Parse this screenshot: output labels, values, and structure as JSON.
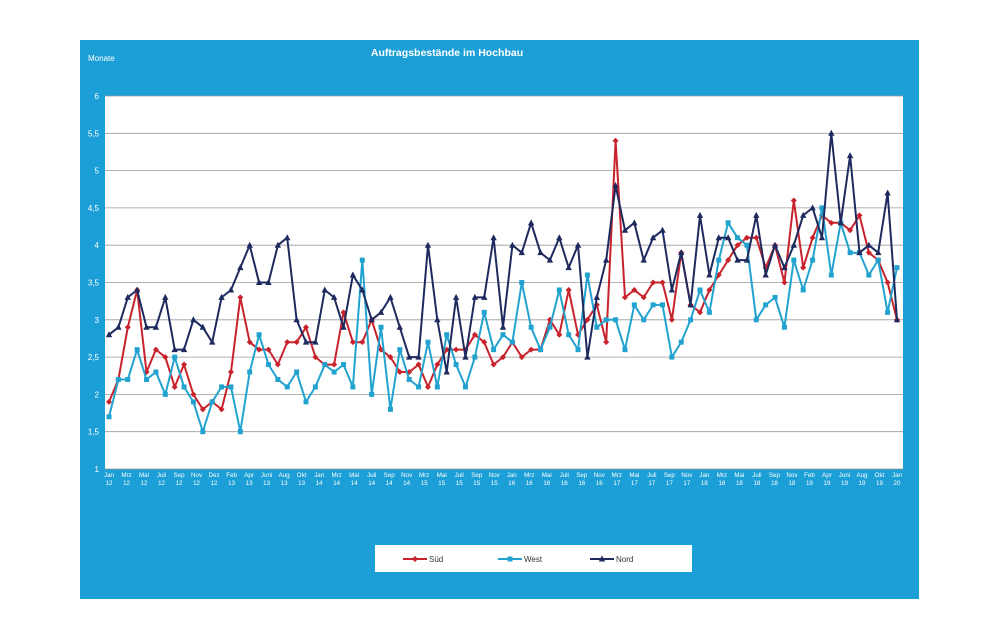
{
  "chart_data": {
    "type": "line",
    "title": "Auftragsbestände im Hochbau",
    "ylabel": "Monate",
    "xlabel": "",
    "ylim": [
      1,
      6
    ],
    "yticks": [
      "1",
      "1,5",
      "2",
      "2,5",
      "3",
      "3,5",
      "4",
      "4,5",
      "5",
      "5,5",
      "6"
    ],
    "grid": true,
    "legend_position": "bottom",
    "x_labels": [
      [
        "Jan",
        "12"
      ],
      [
        "Mrz",
        "12"
      ],
      [
        "Mai",
        "12"
      ],
      [
        "Juli",
        "12"
      ],
      [
        "Sep",
        "12"
      ],
      [
        "Nov",
        "12"
      ],
      [
        "Dez",
        "12"
      ],
      [
        "Feb",
        "13"
      ],
      [
        "Apr",
        "13"
      ],
      [
        "Juni",
        "13"
      ],
      [
        "Aug",
        "13"
      ],
      [
        "Okt",
        "13"
      ],
      [
        "Jan",
        "14"
      ],
      [
        "Mrz",
        "14"
      ],
      [
        "Mai",
        "14"
      ],
      [
        "Juli",
        "14"
      ],
      [
        "Sep",
        "14"
      ],
      [
        "Nov",
        "14"
      ],
      [
        "Mrz",
        "15"
      ],
      [
        "Mai",
        "15"
      ],
      [
        "Juli",
        "15"
      ],
      [
        "Sep",
        "15"
      ],
      [
        "Nov",
        "15"
      ],
      [
        "Jan",
        "16"
      ],
      [
        "Mrz",
        "16"
      ],
      [
        "Mai",
        "16"
      ],
      [
        "Juli",
        "16"
      ],
      [
        "Sep",
        "16"
      ],
      [
        "Nov",
        "16"
      ],
      [
        "Mrz",
        "17"
      ],
      [
        "Mai",
        "17"
      ],
      [
        "Juli",
        "17"
      ],
      [
        "Sep",
        "17"
      ],
      [
        "Nov",
        "17"
      ],
      [
        "Jan",
        "18"
      ],
      [
        "Mrz",
        "18"
      ],
      [
        "Mai",
        "18"
      ],
      [
        "Juli",
        "18"
      ],
      [
        "Sep",
        "18"
      ],
      [
        "Nov",
        "18"
      ],
      [
        "Feb",
        "19"
      ],
      [
        "Apr",
        "19"
      ],
      [
        "Juni",
        "19"
      ],
      [
        "Aug",
        "19"
      ],
      [
        "Okt",
        "19"
      ],
      [
        "Jan",
        "20"
      ]
    ],
    "series": [
      {
        "name": "Süd",
        "color": "#c8232c",
        "marker": "diamond",
        "values": [
          1.9,
          2.2,
          2.9,
          3.4,
          2.3,
          2.6,
          2.5,
          2.1,
          2.4,
          2.0,
          1.8,
          1.9,
          1.8,
          2.3,
          3.3,
          2.7,
          2.6,
          2.6,
          2.4,
          2.7,
          2.7,
          2.9,
          2.5,
          2.4,
          2.4,
          3.1,
          2.7,
          2.7,
          3.0,
          2.6,
          2.5,
          2.3,
          2.3,
          2.4,
          2.1,
          2.4,
          2.6,
          2.6,
          2.6,
          2.8,
          2.7,
          2.4,
          2.5,
          2.7,
          2.5,
          2.6,
          2.6,
          3.0,
          2.8,
          3.4,
          2.8,
          3.0,
          3.2,
          2.7,
          5.4,
          3.3,
          3.4,
          3.3,
          3.5,
          3.5,
          3.0,
          3.9,
          3.2,
          3.1,
          3.4,
          3.6,
          3.8,
          4.0,
          4.1,
          4.1,
          3.7,
          4.0,
          3.5,
          4.6,
          3.7,
          4.1,
          4.4,
          4.3,
          4.3,
          4.2,
          4.4,
          3.9,
          3.8,
          3.5,
          3.0
        ]
      },
      {
        "name": "West",
        "color": "#22a3cf",
        "marker": "square",
        "values": [
          1.7,
          2.2,
          2.2,
          2.6,
          2.2,
          2.3,
          2.0,
          2.5,
          2.1,
          1.9,
          1.5,
          1.9,
          2.1,
          2.1,
          1.5,
          2.3,
          2.8,
          2.4,
          2.2,
          2.1,
          2.3,
          1.9,
          2.1,
          2.4,
          2.3,
          2.4,
          2.1,
          3.8,
          2.0,
          2.9,
          1.8,
          2.6,
          2.2,
          2.1,
          2.7,
          2.1,
          2.8,
          2.4,
          2.1,
          2.5,
          3.1,
          2.6,
          2.8,
          2.7,
          3.5,
          2.9,
          2.6,
          2.9,
          3.4,
          2.8,
          2.6,
          3.6,
          2.9,
          3.0,
          3.0,
          2.6,
          3.2,
          3.0,
          3.2,
          3.2,
          2.5,
          2.7,
          3.0,
          3.4,
          3.1,
          3.8,
          4.3,
          4.1,
          4.0,
          3.0,
          3.2,
          3.3,
          2.9,
          3.8,
          3.4,
          3.8,
          4.5,
          3.6,
          4.3,
          3.9,
          3.9,
          3.6,
          3.8,
          3.1,
          3.7
        ]
      },
      {
        "name": "Nord",
        "color": "#1e2a5e",
        "marker": "triangle",
        "values": [
          2.8,
          2.9,
          3.3,
          3.4,
          2.9,
          2.9,
          3.3,
          2.6,
          2.6,
          3.0,
          2.9,
          2.7,
          3.3,
          3.4,
          3.7,
          4.0,
          3.5,
          3.5,
          4.0,
          4.1,
          3.0,
          2.7,
          2.7,
          3.4,
          3.3,
          2.9,
          3.6,
          3.4,
          3.0,
          3.1,
          3.3,
          2.9,
          2.5,
          2.5,
          4.0,
          3.0,
          2.3,
          3.3,
          2.5,
          3.3,
          3.3,
          4.1,
          2.9,
          4.0,
          3.9,
          4.3,
          3.9,
          3.8,
          4.1,
          3.7,
          4.0,
          2.5,
          3.3,
          3.8,
          4.8,
          4.2,
          4.3,
          3.8,
          4.1,
          4.2,
          3.4,
          3.9,
          3.2,
          4.4,
          3.6,
          4.1,
          4.1,
          3.8,
          3.8,
          4.4,
          3.6,
          4.0,
          3.7,
          4.0,
          4.4,
          4.5,
          4.1,
          5.5,
          4.3,
          5.2,
          3.9,
          4.0,
          3.9,
          4.7,
          3.0
        ]
      }
    ]
  }
}
